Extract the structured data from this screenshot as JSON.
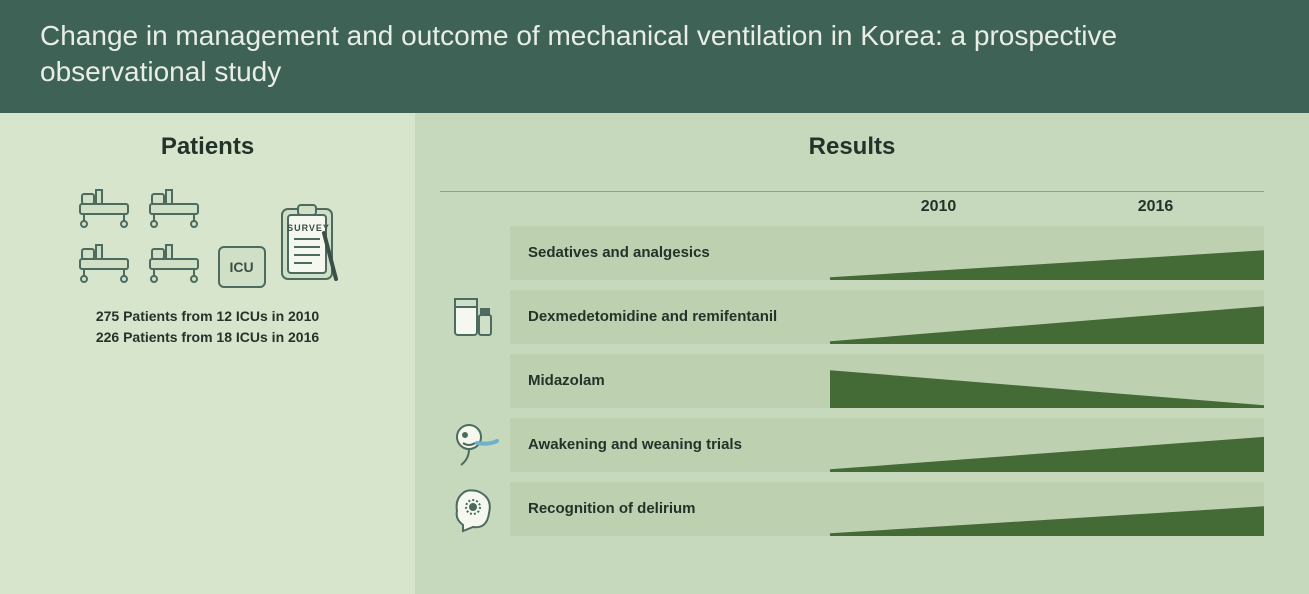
{
  "colors": {
    "header_bg": "#3f6256",
    "header_text": "#e8eee6",
    "patients_bg": "#d7e5cd",
    "results_bg": "#c6d9bd",
    "row_bg": "#bdd1b1",
    "wedge_fill": "#446b35",
    "text": "#24332a",
    "icon_stroke": "#4d6b5e",
    "divider": "#8aa583"
  },
  "title": "Change in management and outcome of mechanical ventilation in Korea: a prospective observational study",
  "patients": {
    "heading": "Patients",
    "icu_label": "ICU",
    "survey_label": "SURVEY",
    "line1": "275 Patients from 12 ICUs in 2010",
    "line2": "226 Patients from 18 ICUs in 2016"
  },
  "results": {
    "heading": "Results",
    "years": [
      "2010",
      "2016"
    ],
    "rows": [
      {
        "label": "Sedatives and analgesics",
        "trend": "up",
        "start_h": 0.05,
        "end_h": 0.55,
        "icon": "none"
      },
      {
        "label": "Dexmedetomidine and remifentanil",
        "trend": "up",
        "start_h": 0.05,
        "end_h": 0.7,
        "icon": "medication"
      },
      {
        "label": "Midazolam",
        "trend": "down",
        "start_h": 0.7,
        "end_h": 0.05,
        "icon": "none"
      },
      {
        "label": "Awakening and weaning trials",
        "trend": "up",
        "start_h": 0.05,
        "end_h": 0.65,
        "icon": "awakening"
      },
      {
        "label": "Recognition of delirium",
        "trend": "up",
        "start_h": 0.05,
        "end_h": 0.55,
        "icon": "delirium"
      }
    ]
  }
}
